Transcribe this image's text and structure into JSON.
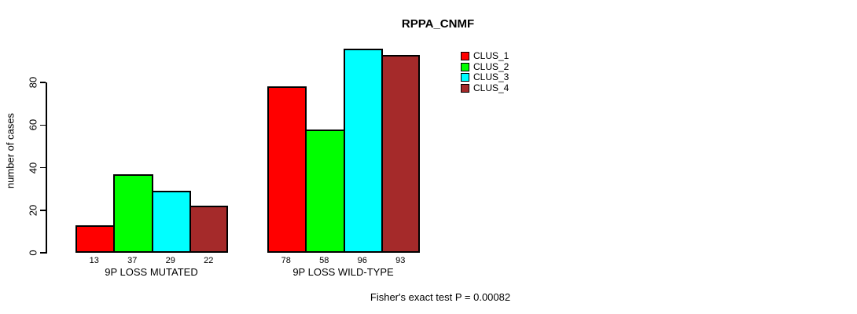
{
  "chart_data": {
    "type": "bar",
    "title": "RPPA_CNMF",
    "categories": [
      "9P LOSS MUTATED",
      "9P LOSS WILD-TYPE"
    ],
    "series": [
      {
        "name": "CLUS_1",
        "color": "#FF0000",
        "values": [
          13,
          78
        ]
      },
      {
        "name": "CLUS_2",
        "color": "#00FF00",
        "values": [
          37,
          58
        ]
      },
      {
        "name": "CLUS_3",
        "color": "#00FFFF",
        "values": [
          29,
          96
        ]
      },
      {
        "name": "CLUS_4",
        "color": "#A52A2A",
        "values": [
          22,
          93
        ]
      }
    ],
    "ylabel": "number of cases",
    "xlabel": "",
    "yticks": [
      0,
      20,
      40,
      60,
      80
    ],
    "ylim": [
      0,
      97
    ],
    "grid": false,
    "bar_value_labels": true,
    "legend_position": "top-right",
    "annotation": "Fisher's exact test P = 0.00082"
  }
}
